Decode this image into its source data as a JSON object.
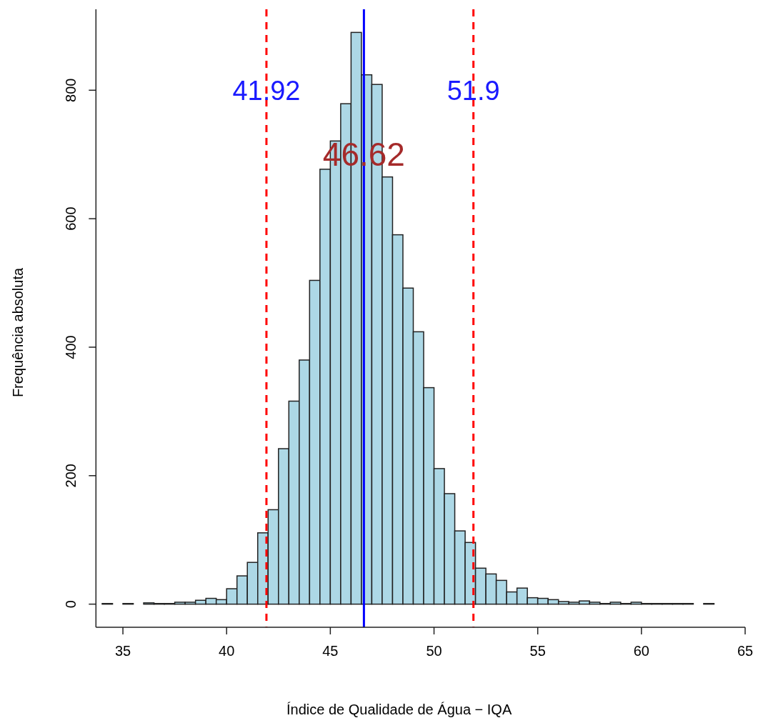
{
  "chart_data": {
    "type": "histogram",
    "xlabel": "Índice de Qualidade de Água − IQA",
    "ylabel": "Frequência absoluta",
    "bins": [
      34,
      34.5,
      35,
      35.5,
      36,
      36.5,
      37,
      37.5,
      38,
      38.5,
      39,
      39.5,
      40,
      40.5,
      41,
      41.5,
      42,
      42.5,
      43,
      43.5,
      44,
      44.5,
      45,
      45.5,
      46,
      46.5,
      47,
      47.5,
      48,
      48.5,
      49,
      49.5,
      50,
      50.5,
      51,
      51.5,
      52,
      52.5,
      53,
      53.5,
      54,
      54.5,
      55,
      55.5,
      56,
      56.5,
      57,
      57.5,
      58,
      58.5,
      59,
      59.5,
      60,
      60.5,
      61,
      61.5,
      62,
      62.5,
      63,
      63.5
    ],
    "values": [
      1,
      0,
      1,
      0,
      2,
      1,
      1,
      3,
      3,
      6,
      9,
      7,
      24,
      44,
      65,
      111,
      147,
      242,
      316,
      380,
      504,
      677,
      721,
      779,
      890,
      824,
      809,
      665,
      575,
      492,
      424,
      337,
      211,
      172,
      114,
      96,
      56,
      47,
      37,
      19,
      25,
      10,
      9,
      7,
      4,
      3,
      5,
      3,
      1,
      3,
      1,
      3,
      1,
      1,
      1,
      1,
      1,
      0,
      1
    ],
    "color": "#add8e6",
    "xlim": [
      33.7,
      65
    ],
    "xticks": [
      35,
      40,
      45,
      50,
      55,
      60,
      65
    ],
    "ylim": [
      -36,
      926
    ],
    "yticks": [
      0,
      200,
      400,
      600,
      800
    ],
    "ref_lines": [
      {
        "axis": "x",
        "value": 46.62,
        "color": "#0000ff",
        "line_style": "solid"
      },
      {
        "axis": "x",
        "value": 41.92,
        "color": "#ff0000",
        "line_style": "dashed"
      },
      {
        "axis": "x",
        "value": 51.9,
        "color": "#ff0000",
        "line_style": "dashed"
      }
    ],
    "annotations": [
      {
        "text": "41.92",
        "x": 41.92,
        "y": 800
      },
      {
        "text": "51.9",
        "x": 51.9,
        "y": 800
      },
      {
        "text": "46.62",
        "x": 46.62,
        "y": 700
      }
    ],
    "grid": false
  }
}
